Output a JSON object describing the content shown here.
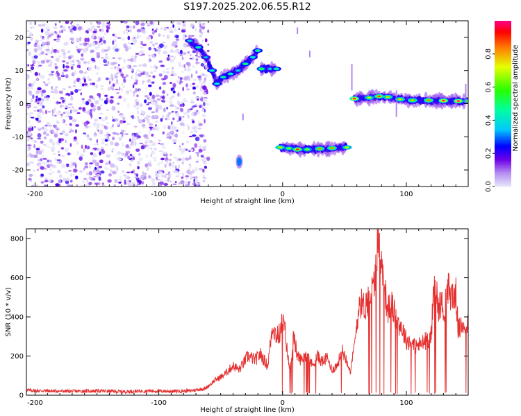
{
  "figure": {
    "title": "S197.2025.202.06.55.R12"
  },
  "chart_data": [
    {
      "type": "heatmap",
      "title": "S197.2025.202.06.55.R12",
      "xlabel": "Height of straight line (km)",
      "ylabel": "Frequency (Hz)",
      "xlim": [
        -207,
        150
      ],
      "ylim": [
        -25,
        25
      ],
      "x_ticks": [
        -200,
        -100,
        0,
        100
      ],
      "y_ticks": [
        -20,
        -10,
        0,
        10,
        20
      ],
      "colorbar": {
        "label": "Normalized spectral amplitude",
        "range": [
          0,
          1
        ],
        "ticks": [
          0.0,
          0.2,
          0.4,
          0.6,
          0.8
        ]
      },
      "noise_region": {
        "x_range": [
          -207,
          -60
        ],
        "y_range": [
          -25,
          25
        ],
        "amplitude": 0.15
      },
      "ridges": [
        {
          "name": "",
          "points": [
            [
              -75,
              19
            ],
            [
              -68,
              17
            ],
            [
              -62,
              14
            ],
            [
              -57,
              10
            ],
            [
              -53,
              6
            ],
            [
              -48,
              8
            ],
            [
              -42,
              9
            ],
            [
              -36,
              10
            ],
            [
              -30,
              12
            ],
            [
              -24,
              14
            ],
            [
              -20,
              16
            ]
          ],
          "amplitude": 0.45
        },
        {
          "name": "",
          "points": [
            [
              -17,
              10.5
            ],
            [
              -10,
              10.5
            ],
            [
              -5,
              10.5
            ]
          ],
          "amplitude": 0.5
        },
        {
          "name": "",
          "points": [
            [
              -2,
              -13.2
            ],
            [
              5,
              -13.5
            ],
            [
              12,
              -13.8
            ],
            [
              20,
              -13.8
            ],
            [
              30,
              -13.6
            ],
            [
              40,
              -13.4
            ],
            [
              52,
              -13.2
            ]
          ],
          "amplitude": 0.75
        },
        {
          "name": "",
          "points": [
            [
              58,
              1.5
            ],
            [
              70,
              1.8
            ],
            [
              78,
              2.2
            ],
            [
              85,
              2.0
            ],
            [
              95,
              1.3
            ],
            [
              105,
              1.0
            ],
            [
              118,
              1.0
            ],
            [
              130,
              0.9
            ],
            [
              142,
              0.8
            ],
            [
              150,
              0.8
            ]
          ],
          "amplitude": 0.85
        }
      ],
      "blobs": [
        {
          "x": -35,
          "y": -17.5,
          "amplitude": 0.3
        }
      ]
    },
    {
      "type": "line",
      "xlabel": "Height of straight line (km)",
      "ylabel": "SNR (10 * v/v)",
      "xlim": [
        -207,
        150
      ],
      "ylim": [
        0,
        850
      ],
      "x_ticks": [
        -200,
        -100,
        0,
        100
      ],
      "y_ticks": [
        0,
        200,
        400,
        600,
        800
      ],
      "color": "#e53030",
      "series": [
        {
          "name": "",
          "x": [
            -207,
            -190,
            -170,
            -150,
            -130,
            -110,
            -90,
            -75,
            -62,
            -55,
            -48,
            -40,
            -35,
            -28,
            -22,
            -18,
            -12,
            -8,
            -5,
            -2,
            0,
            2,
            4,
            6,
            9,
            12,
            15,
            20,
            24,
            28,
            32,
            36,
            40,
            44,
            48,
            52,
            55,
            58,
            62,
            66,
            70,
            74,
            76,
            78,
            80,
            82,
            85,
            88,
            92,
            96,
            100,
            104,
            108,
            112,
            116,
            120,
            122,
            124,
            126,
            128,
            130,
            134,
            138,
            140,
            142,
            146,
            150
          ],
          "y": [
            25,
            22,
            20,
            22,
            18,
            22,
            20,
            22,
            35,
            75,
            100,
            150,
            130,
            200,
            180,
            210,
            150,
            360,
            300,
            320,
            380,
            330,
            210,
            120,
            300,
            200,
            180,
            220,
            150,
            200,
            170,
            190,
            130,
            150,
            230,
            180,
            120,
            250,
            480,
            450,
            500,
            560,
            720,
            840,
            650,
            580,
            430,
            470,
            380,
            350,
            280,
            270,
            250,
            260,
            280,
            300,
            520,
            560,
            430,
            480,
            420,
            540,
            500,
            520,
            330,
            360,
            370
          ]
        }
      ]
    }
  ]
}
